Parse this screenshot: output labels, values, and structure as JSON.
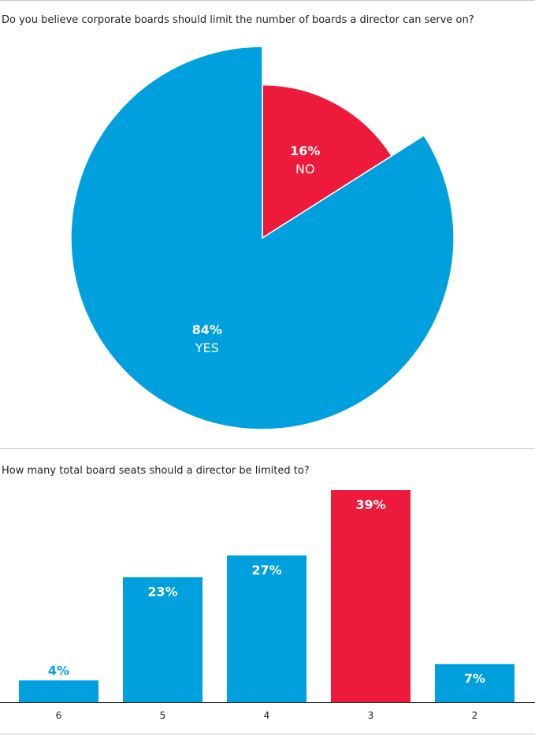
{
  "pie_question": "Do you believe corporate boards should limit the number of boards a director can serve on?",
  "bar_question": "How many total board seats should a director be limited to?",
  "colors": {
    "blue": "#009fde",
    "red": "#ed1a3b"
  },
  "chart_data": [
    {
      "type": "pie",
      "title": "Do you believe corporate boards should limit the number of boards a director can serve on?",
      "slices": [
        {
          "label": "YES",
          "value": 84,
          "value_label": "84%",
          "color": "#009fde"
        },
        {
          "label": "NO",
          "value": 16,
          "value_label": "16%",
          "color": "#ed1a3b",
          "exploded": true
        }
      ]
    },
    {
      "type": "bar",
      "title": "How many total board seats should a director be limited to?",
      "categories": [
        "6",
        "5",
        "4",
        "3",
        "2"
      ],
      "values": [
        4,
        23,
        27,
        39,
        7
      ],
      "value_labels": [
        "4%",
        "23%",
        "27%",
        "39%",
        "7%"
      ],
      "colors": [
        "#009fde",
        "#009fde",
        "#009fde",
        "#ed1a3b",
        "#009fde"
      ],
      "ylim": [
        0,
        39
      ]
    }
  ]
}
